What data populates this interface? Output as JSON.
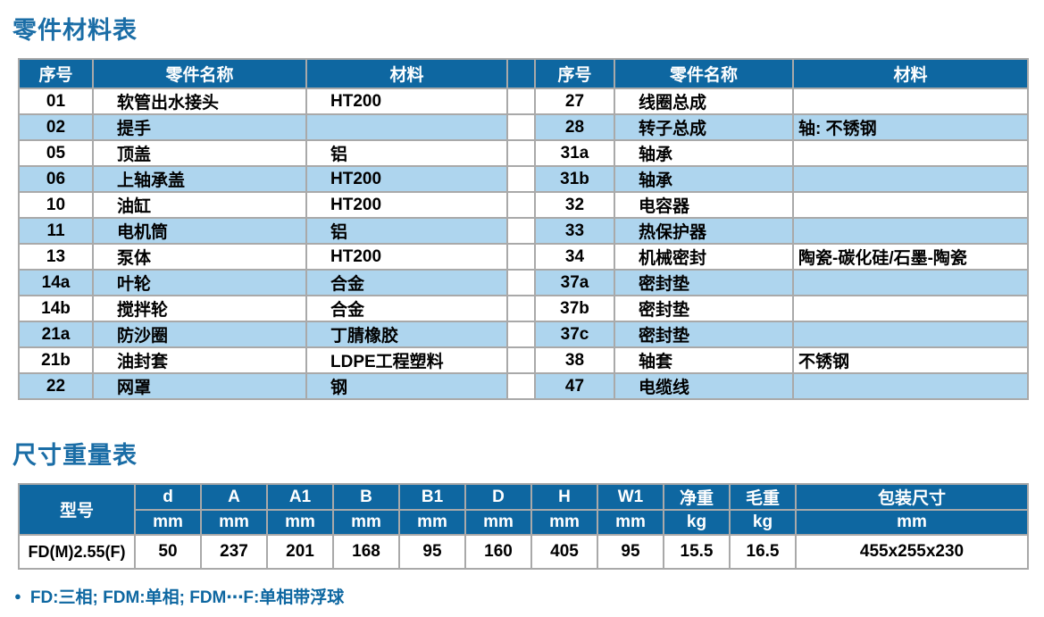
{
  "titles": {
    "parts": "零件材料表",
    "dimensions": "尺寸重量表"
  },
  "colors": {
    "header_blue": "#0e67a1",
    "row_alt_blue": "#aed5ee",
    "border_gray": "#a9a9a9",
    "title_blue": "#1a6da6"
  },
  "parts_table": {
    "headers": [
      "序号",
      "零件名称",
      "材料"
    ],
    "left_rows": [
      {
        "no": "01",
        "name": "软管出水接头",
        "material": "HT200"
      },
      {
        "no": "02",
        "name": "提手",
        "material": ""
      },
      {
        "no": "05",
        "name": "顶盖",
        "material": "铝"
      },
      {
        "no": "06",
        "name": "上轴承盖",
        "material": "HT200"
      },
      {
        "no": "10",
        "name": "油缸",
        "material": "HT200"
      },
      {
        "no": "11",
        "name": "电机筒",
        "material": "铝"
      },
      {
        "no": "13",
        "name": "泵体",
        "material": "HT200"
      },
      {
        "no": "14a",
        "name": "叶轮",
        "material": "合金"
      },
      {
        "no": "14b",
        "name": "搅拌轮",
        "material": "合金"
      },
      {
        "no": "21a",
        "name": "防沙圈",
        "material": "丁腈橡胶"
      },
      {
        "no": "21b",
        "name": "油封套",
        "material": "LDPE工程塑料"
      },
      {
        "no": "22",
        "name": "网罩",
        "material": "钢"
      }
    ],
    "right_rows": [
      {
        "no": "27",
        "name": "线圈总成",
        "material": ""
      },
      {
        "no": "28",
        "name": "转子总成",
        "material": "轴: 不锈钢"
      },
      {
        "no": "31a",
        "name": "轴承",
        "material": ""
      },
      {
        "no": "31b",
        "name": "轴承",
        "material": ""
      },
      {
        "no": "32",
        "name": "电容器",
        "material": ""
      },
      {
        "no": "33",
        "name": "热保护器",
        "material": ""
      },
      {
        "no": "34",
        "name": "机械密封",
        "material": "陶瓷-碳化硅/石墨-陶瓷"
      },
      {
        "no": "37a",
        "name": "密封垫",
        "material": ""
      },
      {
        "no": "37b",
        "name": "密封垫",
        "material": ""
      },
      {
        "no": "37c",
        "name": "密封垫",
        "material": ""
      },
      {
        "no": "38",
        "name": "轴套",
        "material": "不锈钢"
      },
      {
        "no": "47",
        "name": "电缆线",
        "material": ""
      }
    ]
  },
  "dimensions_table": {
    "model_header": "型号",
    "columns": [
      {
        "label": "d",
        "unit": "mm"
      },
      {
        "label": "A",
        "unit": "mm"
      },
      {
        "label": "A1",
        "unit": "mm"
      },
      {
        "label": "B",
        "unit": "mm"
      },
      {
        "label": "B1",
        "unit": "mm"
      },
      {
        "label": "D",
        "unit": "mm"
      },
      {
        "label": "H",
        "unit": "mm"
      },
      {
        "label": "W1",
        "unit": "mm"
      },
      {
        "label": "净重",
        "unit": "kg"
      },
      {
        "label": "毛重",
        "unit": "kg"
      },
      {
        "label": "包装尺寸",
        "unit": "mm"
      }
    ],
    "row": {
      "model": "FD(M)2.55(F)",
      "values": [
        "50",
        "237",
        "201",
        "168",
        "95",
        "160",
        "405",
        "95",
        "15.5",
        "16.5",
        "455x255x230"
      ]
    }
  },
  "footer": {
    "bullet": "●",
    "note": "FD:三相; FDM:单相; FDM⋯F:单相带浮球"
  }
}
